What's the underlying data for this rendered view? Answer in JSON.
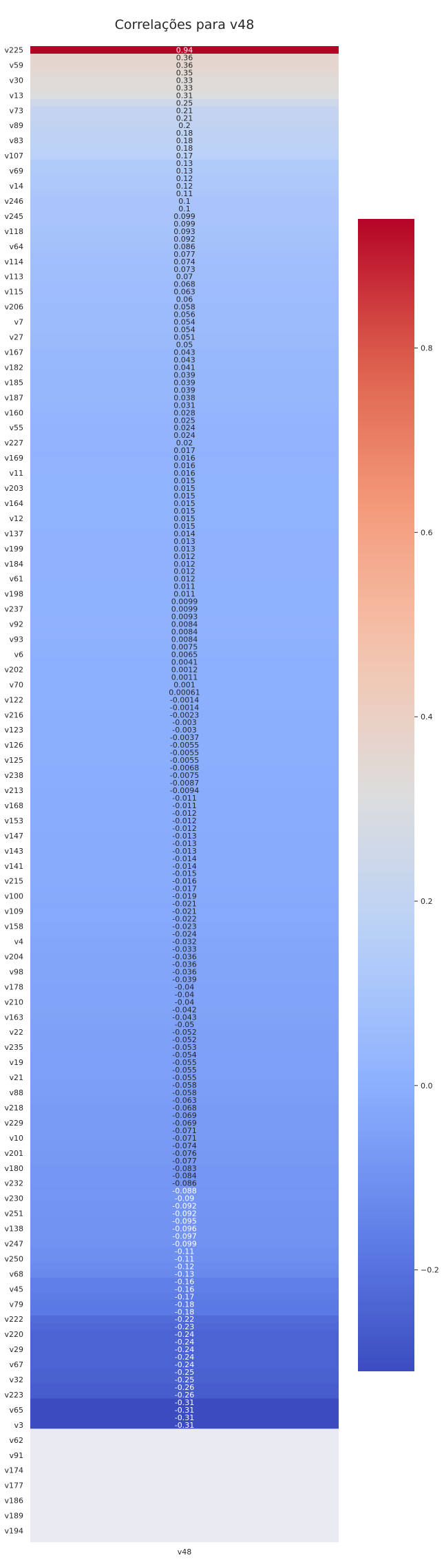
{
  "chart_data": {
    "type": "heatmap",
    "title": "Correlações para v48",
    "xlabel": "v48",
    "colormap": "coolwarm",
    "vmin": -0.31,
    "vmax": 0.94,
    "colorbar": {
      "ticks": [
        -0.2,
        0.0,
        0.2,
        0.4,
        0.6,
        0.8
      ],
      "tick_labels": [
        "−0.2",
        "0.0",
        "0.2",
        "0.4",
        "0.6",
        "0.8"
      ]
    },
    "nan_color": "#eaeaf2",
    "rows": [
      {
        "label": "v225",
        "value": 0.94,
        "text": "0.94"
      },
      {
        "label": "",
        "value": 0.36,
        "text": "0.36"
      },
      {
        "label": "v59",
        "value": 0.36,
        "text": "0.36"
      },
      {
        "label": "",
        "value": 0.35,
        "text": "0.35"
      },
      {
        "label": "v30",
        "value": 0.33,
        "text": "0.33"
      },
      {
        "label": "",
        "value": 0.33,
        "text": "0.33"
      },
      {
        "label": "v13",
        "value": 0.31,
        "text": "0.31"
      },
      {
        "label": "",
        "value": 0.25,
        "text": "0.25"
      },
      {
        "label": "v73",
        "value": 0.21,
        "text": "0.21"
      },
      {
        "label": "",
        "value": 0.21,
        "text": "0.21"
      },
      {
        "label": "v89",
        "value": 0.2,
        "text": "0.2"
      },
      {
        "label": "",
        "value": 0.18,
        "text": "0.18"
      },
      {
        "label": "v83",
        "value": 0.18,
        "text": "0.18"
      },
      {
        "label": "",
        "value": 0.18,
        "text": "0.18"
      },
      {
        "label": "v107",
        "value": 0.17,
        "text": "0.17"
      },
      {
        "label": "",
        "value": 0.13,
        "text": "0.13"
      },
      {
        "label": "v69",
        "value": 0.13,
        "text": "0.13"
      },
      {
        "label": "",
        "value": 0.12,
        "text": "0.12"
      },
      {
        "label": "v14",
        "value": 0.12,
        "text": "0.12"
      },
      {
        "label": "",
        "value": 0.11,
        "text": "0.11"
      },
      {
        "label": "v246",
        "value": 0.1,
        "text": "0.1"
      },
      {
        "label": "",
        "value": 0.1,
        "text": "0.1"
      },
      {
        "label": "v245",
        "value": 0.099,
        "text": "0.099"
      },
      {
        "label": "",
        "value": 0.099,
        "text": "0.099"
      },
      {
        "label": "v118",
        "value": 0.093,
        "text": "0.093"
      },
      {
        "label": "",
        "value": 0.092,
        "text": "0.092"
      },
      {
        "label": "v64",
        "value": 0.086,
        "text": "0.086"
      },
      {
        "label": "",
        "value": 0.077,
        "text": "0.077"
      },
      {
        "label": "v114",
        "value": 0.074,
        "text": "0.074"
      },
      {
        "label": "",
        "value": 0.073,
        "text": "0.073"
      },
      {
        "label": "v113",
        "value": 0.07,
        "text": "0.07"
      },
      {
        "label": "",
        "value": 0.068,
        "text": "0.068"
      },
      {
        "label": "v115",
        "value": 0.063,
        "text": "0.063"
      },
      {
        "label": "",
        "value": 0.06,
        "text": "0.06"
      },
      {
        "label": "v206",
        "value": 0.058,
        "text": "0.058"
      },
      {
        "label": "",
        "value": 0.056,
        "text": "0.056"
      },
      {
        "label": "v7",
        "value": 0.054,
        "text": "0.054"
      },
      {
        "label": "",
        "value": 0.054,
        "text": "0.054"
      },
      {
        "label": "v27",
        "value": 0.051,
        "text": "0.051"
      },
      {
        "label": "",
        "value": 0.05,
        "text": "0.05"
      },
      {
        "label": "v167",
        "value": 0.043,
        "text": "0.043"
      },
      {
        "label": "",
        "value": 0.043,
        "text": "0.043"
      },
      {
        "label": "v182",
        "value": 0.041,
        "text": "0.041"
      },
      {
        "label": "",
        "value": 0.039,
        "text": "0.039"
      },
      {
        "label": "v185",
        "value": 0.039,
        "text": "0.039"
      },
      {
        "label": "",
        "value": 0.039,
        "text": "0.039"
      },
      {
        "label": "v187",
        "value": 0.038,
        "text": "0.038"
      },
      {
        "label": "",
        "value": 0.031,
        "text": "0.031"
      },
      {
        "label": "v160",
        "value": 0.028,
        "text": "0.028"
      },
      {
        "label": "",
        "value": 0.025,
        "text": "0.025"
      },
      {
        "label": "v55",
        "value": 0.024,
        "text": "0.024"
      },
      {
        "label": "",
        "value": 0.024,
        "text": "0.024"
      },
      {
        "label": "v227",
        "value": 0.02,
        "text": "0.02"
      },
      {
        "label": "",
        "value": 0.017,
        "text": "0.017"
      },
      {
        "label": "v169",
        "value": 0.016,
        "text": "0.016"
      },
      {
        "label": "",
        "value": 0.016,
        "text": "0.016"
      },
      {
        "label": "v11",
        "value": 0.016,
        "text": "0.016"
      },
      {
        "label": "",
        "value": 0.015,
        "text": "0.015"
      },
      {
        "label": "v203",
        "value": 0.015,
        "text": "0.015"
      },
      {
        "label": "",
        "value": 0.015,
        "text": "0.015"
      },
      {
        "label": "v164",
        "value": 0.015,
        "text": "0.015"
      },
      {
        "label": "",
        "value": 0.015,
        "text": "0.015"
      },
      {
        "label": "v12",
        "value": 0.015,
        "text": "0.015"
      },
      {
        "label": "",
        "value": 0.015,
        "text": "0.015"
      },
      {
        "label": "v137",
        "value": 0.014,
        "text": "0.014"
      },
      {
        "label": "",
        "value": 0.013,
        "text": "0.013"
      },
      {
        "label": "v199",
        "value": 0.013,
        "text": "0.013"
      },
      {
        "label": "",
        "value": 0.012,
        "text": "0.012"
      },
      {
        "label": "v184",
        "value": 0.012,
        "text": "0.012"
      },
      {
        "label": "",
        "value": 0.012,
        "text": "0.012"
      },
      {
        "label": "v61",
        "value": 0.012,
        "text": "0.012"
      },
      {
        "label": "",
        "value": 0.011,
        "text": "0.011"
      },
      {
        "label": "v198",
        "value": 0.011,
        "text": "0.011"
      },
      {
        "label": "",
        "value": 0.0099,
        "text": "0.0099"
      },
      {
        "label": "v237",
        "value": 0.0099,
        "text": "0.0099"
      },
      {
        "label": "",
        "value": 0.0093,
        "text": "0.0093"
      },
      {
        "label": "v92",
        "value": 0.0084,
        "text": "0.0084"
      },
      {
        "label": "",
        "value": 0.0084,
        "text": "0.0084"
      },
      {
        "label": "v93",
        "value": 0.0084,
        "text": "0.0084"
      },
      {
        "label": "",
        "value": 0.0075,
        "text": "0.0075"
      },
      {
        "label": "v6",
        "value": 0.0065,
        "text": "0.0065"
      },
      {
        "label": "",
        "value": 0.0041,
        "text": "0.0041"
      },
      {
        "label": "v202",
        "value": 0.0012,
        "text": "0.0012"
      },
      {
        "label": "",
        "value": 0.0011,
        "text": "0.0011"
      },
      {
        "label": "v70",
        "value": 0.001,
        "text": "0.001"
      },
      {
        "label": "",
        "value": 0.00061,
        "text": "0.00061"
      },
      {
        "label": "v122",
        "value": -0.0014,
        "text": "-0.0014"
      },
      {
        "label": "",
        "value": -0.0014,
        "text": "-0.0014"
      },
      {
        "label": "v216",
        "value": -0.0023,
        "text": "-0.0023"
      },
      {
        "label": "",
        "value": -0.003,
        "text": "-0.003"
      },
      {
        "label": "v123",
        "value": -0.003,
        "text": "-0.003"
      },
      {
        "label": "",
        "value": -0.0037,
        "text": "-0.0037"
      },
      {
        "label": "v126",
        "value": -0.0055,
        "text": "-0.0055"
      },
      {
        "label": "",
        "value": -0.0055,
        "text": "-0.0055"
      },
      {
        "label": "v125",
        "value": -0.0055,
        "text": "-0.0055"
      },
      {
        "label": "",
        "value": -0.0068,
        "text": "-0.0068"
      },
      {
        "label": "v238",
        "value": -0.0075,
        "text": "-0.0075"
      },
      {
        "label": "",
        "value": -0.0087,
        "text": "-0.0087"
      },
      {
        "label": "v213",
        "value": -0.0094,
        "text": "-0.0094"
      },
      {
        "label": "",
        "value": -0.011,
        "text": "-0.011"
      },
      {
        "label": "v168",
        "value": -0.011,
        "text": "-0.011"
      },
      {
        "label": "",
        "value": -0.012,
        "text": "-0.012"
      },
      {
        "label": "v153",
        "value": -0.012,
        "text": "-0.012"
      },
      {
        "label": "",
        "value": -0.012,
        "text": "-0.012"
      },
      {
        "label": "v147",
        "value": -0.013,
        "text": "-0.013"
      },
      {
        "label": "",
        "value": -0.013,
        "text": "-0.013"
      },
      {
        "label": "v143",
        "value": -0.013,
        "text": "-0.013"
      },
      {
        "label": "",
        "value": -0.014,
        "text": "-0.014"
      },
      {
        "label": "v141",
        "value": -0.014,
        "text": "-0.014"
      },
      {
        "label": "",
        "value": -0.015,
        "text": "-0.015"
      },
      {
        "label": "v215",
        "value": -0.016,
        "text": "-0.016"
      },
      {
        "label": "",
        "value": -0.017,
        "text": "-0.017"
      },
      {
        "label": "v100",
        "value": -0.019,
        "text": "-0.019"
      },
      {
        "label": "",
        "value": -0.021,
        "text": "-0.021"
      },
      {
        "label": "v109",
        "value": -0.021,
        "text": "-0.021"
      },
      {
        "label": "",
        "value": -0.022,
        "text": "-0.022"
      },
      {
        "label": "v158",
        "value": -0.023,
        "text": "-0.023"
      },
      {
        "label": "",
        "value": -0.024,
        "text": "-0.024"
      },
      {
        "label": "v4",
        "value": -0.032,
        "text": "-0.032"
      },
      {
        "label": "",
        "value": -0.033,
        "text": "-0.033"
      },
      {
        "label": "v204",
        "value": -0.036,
        "text": "-0.036"
      },
      {
        "label": "",
        "value": -0.036,
        "text": "-0.036"
      },
      {
        "label": "v98",
        "value": -0.036,
        "text": "-0.036"
      },
      {
        "label": "",
        "value": -0.039,
        "text": "-0.039"
      },
      {
        "label": "v178",
        "value": -0.04,
        "text": "-0.04"
      },
      {
        "label": "",
        "value": -0.04,
        "text": "-0.04"
      },
      {
        "label": "v210",
        "value": -0.04,
        "text": "-0.04"
      },
      {
        "label": "",
        "value": -0.042,
        "text": "-0.042"
      },
      {
        "label": "v163",
        "value": -0.043,
        "text": "-0.043"
      },
      {
        "label": "",
        "value": -0.05,
        "text": "-0.05"
      },
      {
        "label": "v22",
        "value": -0.052,
        "text": "-0.052"
      },
      {
        "label": "",
        "value": -0.052,
        "text": "-0.052"
      },
      {
        "label": "v235",
        "value": -0.053,
        "text": "-0.053"
      },
      {
        "label": "",
        "value": -0.054,
        "text": "-0.054"
      },
      {
        "label": "v19",
        "value": -0.055,
        "text": "-0.055"
      },
      {
        "label": "",
        "value": -0.055,
        "text": "-0.055"
      },
      {
        "label": "v21",
        "value": -0.055,
        "text": "-0.055"
      },
      {
        "label": "",
        "value": -0.058,
        "text": "-0.058"
      },
      {
        "label": "v88",
        "value": -0.058,
        "text": "-0.058"
      },
      {
        "label": "",
        "value": -0.063,
        "text": "-0.063"
      },
      {
        "label": "v218",
        "value": -0.068,
        "text": "-0.068"
      },
      {
        "label": "",
        "value": -0.069,
        "text": "-0.069"
      },
      {
        "label": "v229",
        "value": -0.069,
        "text": "-0.069"
      },
      {
        "label": "",
        "value": -0.071,
        "text": "-0.071"
      },
      {
        "label": "v10",
        "value": -0.071,
        "text": "-0.071"
      },
      {
        "label": "",
        "value": -0.074,
        "text": "-0.074"
      },
      {
        "label": "v201",
        "value": -0.076,
        "text": "-0.076"
      },
      {
        "label": "",
        "value": -0.077,
        "text": "-0.077"
      },
      {
        "label": "v180",
        "value": -0.083,
        "text": "-0.083"
      },
      {
        "label": "",
        "value": -0.084,
        "text": "-0.084"
      },
      {
        "label": "v232",
        "value": -0.086,
        "text": "-0.086"
      },
      {
        "label": "",
        "value": -0.088,
        "text": "-0.088"
      },
      {
        "label": "v230",
        "value": -0.09,
        "text": "-0.09"
      },
      {
        "label": "",
        "value": -0.092,
        "text": "-0.092"
      },
      {
        "label": "v251",
        "value": -0.092,
        "text": "-0.092"
      },
      {
        "label": "",
        "value": -0.095,
        "text": "-0.095"
      },
      {
        "label": "v138",
        "value": -0.096,
        "text": "-0.096"
      },
      {
        "label": "",
        "value": -0.097,
        "text": "-0.097"
      },
      {
        "label": "v247",
        "value": -0.099,
        "text": "-0.099"
      },
      {
        "label": "",
        "value": -0.11,
        "text": "-0.11"
      },
      {
        "label": "v250",
        "value": -0.11,
        "text": "-0.11"
      },
      {
        "label": "",
        "value": -0.12,
        "text": "-0.12"
      },
      {
        "label": "v68",
        "value": -0.13,
        "text": "-0.13"
      },
      {
        "label": "",
        "value": -0.16,
        "text": "-0.16"
      },
      {
        "label": "v45",
        "value": -0.16,
        "text": "-0.16"
      },
      {
        "label": "",
        "value": -0.17,
        "text": "-0.17"
      },
      {
        "label": "v79",
        "value": -0.18,
        "text": "-0.18"
      },
      {
        "label": "",
        "value": -0.18,
        "text": "-0.18"
      },
      {
        "label": "v222",
        "value": -0.22,
        "text": "-0.22"
      },
      {
        "label": "",
        "value": -0.23,
        "text": "-0.23"
      },
      {
        "label": "v220",
        "value": -0.24,
        "text": "-0.24"
      },
      {
        "label": "",
        "value": -0.24,
        "text": "-0.24"
      },
      {
        "label": "v29",
        "value": -0.24,
        "text": "-0.24"
      },
      {
        "label": "",
        "value": -0.24,
        "text": "-0.24"
      },
      {
        "label": "v67",
        "value": -0.24,
        "text": "-0.24"
      },
      {
        "label": "",
        "value": -0.25,
        "text": "-0.25"
      },
      {
        "label": "v32",
        "value": -0.25,
        "text": "-0.25"
      },
      {
        "label": "",
        "value": -0.26,
        "text": "-0.26"
      },
      {
        "label": "v223",
        "value": -0.26,
        "text": "-0.26"
      },
      {
        "label": "",
        "value": -0.31,
        "text": "-0.31"
      },
      {
        "label": "v65",
        "value": -0.31,
        "text": "-0.31"
      },
      {
        "label": "",
        "value": -0.31,
        "text": "-0.31"
      },
      {
        "label": "v3",
        "value": -0.31,
        "text": "-0.31"
      },
      {
        "label": "",
        "value": null,
        "text": ""
      },
      {
        "label": "v62",
        "value": null,
        "text": ""
      },
      {
        "label": "",
        "value": null,
        "text": ""
      },
      {
        "label": "v91",
        "value": null,
        "text": ""
      },
      {
        "label": "",
        "value": null,
        "text": ""
      },
      {
        "label": "v174",
        "value": null,
        "text": ""
      },
      {
        "label": "",
        "value": null,
        "text": ""
      },
      {
        "label": "v177",
        "value": null,
        "text": ""
      },
      {
        "label": "",
        "value": null,
        "text": ""
      },
      {
        "label": "v186",
        "value": null,
        "text": ""
      },
      {
        "label": "",
        "value": null,
        "text": ""
      },
      {
        "label": "v189",
        "value": null,
        "text": ""
      },
      {
        "label": "",
        "value": null,
        "text": ""
      },
      {
        "label": "v194",
        "value": null,
        "text": ""
      },
      {
        "label": "",
        "value": null,
        "text": ""
      }
    ]
  }
}
